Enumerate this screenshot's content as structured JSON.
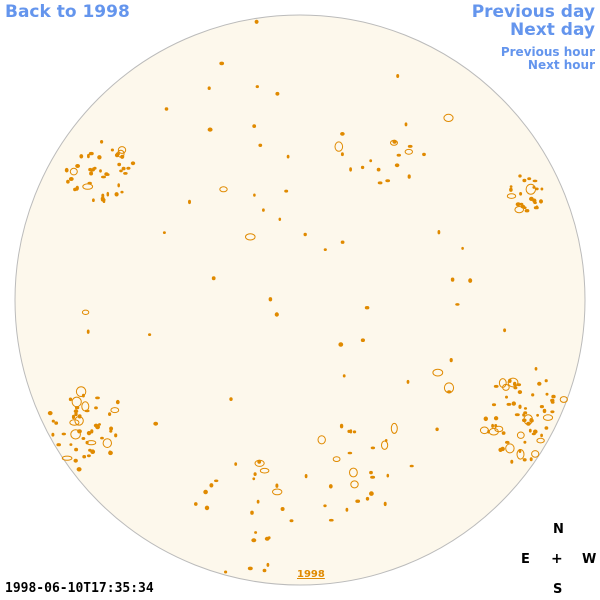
{
  "nav": {
    "back": "Back to 1998",
    "previous_day": "Previous day",
    "next_day": "Next day",
    "previous_hour": "Previous hour",
    "next_hour": "Next hour"
  },
  "image": {
    "timestamp": "1998-06-10T17:35:34",
    "year_label": "1998",
    "disk_color": "#fdf8ec",
    "disk_border_color": "#bbbbbb",
    "feature_color": "#e08a00"
  },
  "compass": {
    "north": "N",
    "east": "E",
    "center": "+",
    "west": "W",
    "south": "S"
  },
  "colors": {
    "link": "#6495ed",
    "year_link": "#e08a00"
  }
}
